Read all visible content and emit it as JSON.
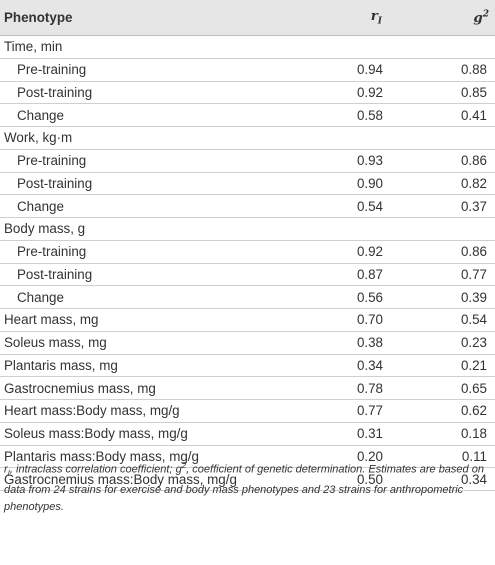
{
  "header": {
    "phenotype": "Phenotype",
    "r_label": "r",
    "r_sub": "I",
    "g_label": "g",
    "g_sup": "2"
  },
  "rows": [
    {
      "label": "Time, min",
      "indent": false,
      "r": "",
      "g": ""
    },
    {
      "label": "Pre-training",
      "indent": true,
      "r": "0.94",
      "g": "0.88"
    },
    {
      "label": "Post-training",
      "indent": true,
      "r": "0.92",
      "g": "0.85"
    },
    {
      "label": "Change",
      "indent": true,
      "r": "0.58",
      "g": "0.41"
    },
    {
      "label": "Work, kg·m",
      "indent": false,
      "r": "",
      "g": ""
    },
    {
      "label": "Pre-training",
      "indent": true,
      "r": "0.93",
      "g": "0.86"
    },
    {
      "label": "Post-training",
      "indent": true,
      "r": "0.90",
      "g": "0.82"
    },
    {
      "label": "Change",
      "indent": true,
      "r": "0.54",
      "g": "0.37"
    },
    {
      "label": "Body mass, g",
      "indent": false,
      "r": "",
      "g": ""
    },
    {
      "label": "Pre-training",
      "indent": true,
      "r": "0.92",
      "g": "0.86"
    },
    {
      "label": "Post-training",
      "indent": true,
      "r": "0.87",
      "g": "0.77"
    },
    {
      "label": "Change",
      "indent": true,
      "r": "0.56",
      "g": "0.39"
    },
    {
      "label": "Heart mass, mg",
      "indent": false,
      "r": "0.70",
      "g": "0.54"
    },
    {
      "label": "Soleus mass, mg",
      "indent": false,
      "r": "0.38",
      "g": "0.23"
    },
    {
      "label": "Plantaris mass, mg",
      "indent": false,
      "r": "0.34",
      "g": "0.21"
    },
    {
      "label": "Gastrocnemius mass, mg",
      "indent": false,
      "r": "0.78",
      "g": "0.65"
    },
    {
      "label": "Heart mass:Body mass, mg/g",
      "indent": false,
      "r": "0.77",
      "g": "0.62"
    },
    {
      "label": "Soleus mass:Body mass, mg/g",
      "indent": false,
      "r": "0.31",
      "g": "0.18"
    },
    {
      "label": "Plantaris mass:Body mass, mg/g",
      "indent": false,
      "r": "0.20",
      "g": "0.11"
    },
    {
      "label": "Gastrocnemius mass:Body mass, mg/g",
      "indent": false,
      "r": "0.50",
      "g": "0.34"
    }
  ],
  "footnote": {
    "r": "r",
    "r_sub": "I",
    "part1": ", intraclass correlation coefficient; ",
    "g": "g",
    "g_sup": "2",
    "part2": ", coefficient of genetic determination. Estimates are based on data from 24 strains for exercise and body mass phenotypes and 23 strains for anthropometric phenotypes."
  }
}
